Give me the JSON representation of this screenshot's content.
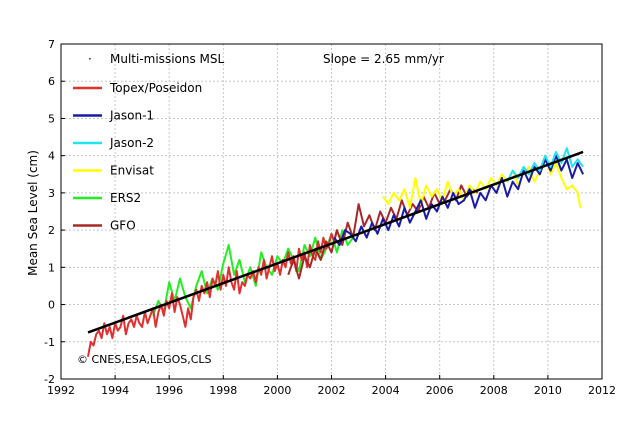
{
  "chart_data": {
    "type": "line",
    "title": "",
    "xlabel": "",
    "ylabel": "Mean Sea Level (cm)",
    "xlim": [
      1992,
      2012
    ],
    "ylim": [
      -2,
      7
    ],
    "xticks": [
      1992,
      1994,
      1996,
      1998,
      2000,
      2002,
      2004,
      2006,
      2008,
      2010,
      2012
    ],
    "yticks": [
      -2,
      -1,
      0,
      1,
      2,
      3,
      4,
      5,
      6,
      7
    ],
    "grid": true,
    "legend_position": "top-left",
    "legend_header": "Multi-missions MSL",
    "annotation": "Slope = 2.65 mm/yr",
    "copyright": "© CNES,ESA,LEGOS,CLS",
    "trend": {
      "x": [
        1993.0,
        2011.3
      ],
      "y": [
        -0.75,
        4.1
      ],
      "color": "#000000"
    },
    "series": [
      {
        "name": "Topex/Poseidon",
        "color": "#e03030",
        "x": [
          1993.0,
          1993.1,
          1993.2,
          1993.3,
          1993.4,
          1993.5,
          1993.6,
          1993.7,
          1993.8,
          1993.9,
          1994.0,
          1994.1,
          1994.2,
          1994.3,
          1994.4,
          1994.5,
          1994.6,
          1994.7,
          1994.8,
          1994.9,
          1995.0,
          1995.1,
          1995.2,
          1995.3,
          1995.4,
          1995.5,
          1995.6,
          1995.7,
          1995.8,
          1995.9,
          1996.0,
          1996.1,
          1996.2,
          1996.3,
          1996.4,
          1996.5,
          1996.6,
          1996.7,
          1996.8,
          1996.9,
          1997.0,
          1997.1,
          1997.2,
          1997.3,
          1997.4,
          1997.5,
          1997.6,
          1997.7,
          1997.8,
          1997.9,
          1998.0,
          1998.1,
          1998.2,
          1998.3,
          1998.4,
          1998.5,
          1998.6,
          1998.7,
          1998.8,
          1998.9,
          1999.0,
          1999.1,
          1999.2,
          1999.3,
          1999.4,
          1999.5,
          1999.6,
          1999.7,
          1999.8,
          1999.9,
          2000.0,
          2000.1,
          2000.2,
          2000.3,
          2000.4,
          2000.5,
          2000.6,
          2000.7,
          2000.8,
          2000.9,
          2001.0,
          2001.1,
          2001.2,
          2001.3,
          2001.4,
          2001.5,
          2001.6,
          2001.7,
          2001.8,
          2001.9,
          2002.0,
          2002.1,
          2002.2
        ],
        "y": [
          -1.4,
          -1.0,
          -1.1,
          -0.8,
          -0.7,
          -0.9,
          -0.5,
          -0.8,
          -0.6,
          -0.9,
          -0.5,
          -0.7,
          -0.6,
          -0.3,
          -0.8,
          -0.5,
          -0.4,
          -0.6,
          -0.3,
          -0.5,
          -0.6,
          -0.2,
          -0.5,
          -0.3,
          -0.1,
          -0.6,
          -0.2,
          0.0,
          -0.3,
          0.1,
          -0.1,
          0.3,
          -0.2,
          0.2,
          0.0,
          -0.3,
          -0.6,
          -0.1,
          -0.4,
          0.2,
          0.4,
          0.1,
          0.5,
          0.3,
          0.6,
          0.2,
          0.7,
          0.5,
          0.9,
          0.4,
          0.8,
          0.5,
          1.0,
          0.6,
          0.4,
          0.9,
          0.3,
          0.6,
          0.5,
          0.8,
          0.7,
          0.9,
          0.6,
          1.0,
          0.8,
          1.2,
          0.7,
          1.0,
          1.3,
          0.9,
          1.1,
          0.8,
          1.2,
          1.0,
          1.4,
          1.1,
          1.3,
          0.9,
          1.5,
          1.2,
          1.4,
          1.0,
          1.6,
          1.3,
          1.2,
          1.7,
          1.4,
          1.8,
          1.5,
          1.6,
          1.9,
          1.7,
          2.0
        ]
      },
      {
        "name": "Jason-1",
        "color": "#1a1aa8",
        "x": [
          2002.1,
          2002.3,
          2002.5,
          2002.7,
          2002.9,
          2003.1,
          2003.3,
          2003.5,
          2003.7,
          2003.9,
          2004.1,
          2004.3,
          2004.5,
          2004.7,
          2004.9,
          2005.1,
          2005.3,
          2005.5,
          2005.7,
          2005.9,
          2006.1,
          2006.3,
          2006.5,
          2006.7,
          2006.9,
          2007.1,
          2007.3,
          2007.5,
          2007.7,
          2007.9,
          2008.1,
          2008.3,
          2008.5,
          2008.7,
          2008.9,
          2009.1,
          2009.3,
          2009.5,
          2009.7,
          2009.9,
          2010.1,
          2010.3,
          2010.5,
          2010.7,
          2010.9,
          2011.1,
          2011.3
        ],
        "y": [
          1.8,
          1.6,
          2.0,
          1.9,
          1.7,
          2.1,
          1.8,
          2.2,
          1.9,
          2.3,
          2.0,
          2.4,
          2.1,
          2.6,
          2.2,
          2.5,
          2.8,
          2.3,
          2.7,
          2.5,
          2.9,
          2.6,
          3.0,
          2.7,
          2.8,
          3.1,
          2.6,
          3.0,
          2.8,
          3.2,
          3.0,
          3.4,
          2.9,
          3.3,
          3.1,
          3.6,
          3.3,
          3.7,
          3.5,
          3.9,
          3.6,
          4.0,
          3.6,
          3.9,
          3.4,
          3.8,
          3.5
        ]
      },
      {
        "name": "Jason-2",
        "color": "#22e4f0",
        "x": [
          2008.5,
          2008.7,
          2008.9,
          2009.1,
          2009.3,
          2009.5,
          2009.7,
          2009.9,
          2010.1,
          2010.3,
          2010.5,
          2010.7,
          2010.9,
          2011.1,
          2011.3
        ],
        "y": [
          3.3,
          3.6,
          3.4,
          3.7,
          3.5,
          3.8,
          3.6,
          4.0,
          3.7,
          4.1,
          3.8,
          4.2,
          3.7,
          3.9,
          3.7
        ]
      },
      {
        "name": "Envisat",
        "color": "#ffff00",
        "x": [
          2003.9,
          2004.1,
          2004.3,
          2004.5,
          2004.7,
          2004.9,
          2005.1,
          2005.3,
          2005.5,
          2005.7,
          2005.9,
          2006.1,
          2006.3,
          2006.5,
          2006.7,
          2006.9,
          2007.1,
          2007.3,
          2007.5,
          2007.7,
          2007.9,
          2008.1,
          2008.3,
          2008.5,
          2008.7,
          2008.9,
          2009.1,
          2009.3,
          2009.5,
          2009.7,
          2009.9,
          2010.1,
          2010.3,
          2010.5,
          2010.7,
          2010.9,
          2011.1,
          2011.2
        ],
        "y": [
          2.9,
          2.7,
          3.0,
          2.8,
          3.1,
          2.6,
          3.4,
          2.7,
          3.2,
          2.9,
          3.1,
          2.8,
          3.3,
          2.9,
          3.1,
          2.8,
          3.2,
          3.0,
          3.3,
          3.1,
          3.4,
          3.2,
          3.5,
          3.3,
          3.6,
          3.2,
          3.5,
          3.7,
          3.3,
          3.6,
          4.0,
          3.5,
          3.8,
          3.4,
          3.1,
          3.2,
          3.0,
          2.6
        ]
      },
      {
        "name": "ERS2",
        "color": "#22ee22",
        "x": [
          1995.4,
          1995.6,
          1995.8,
          1996.0,
          1996.2,
          1996.4,
          1996.6,
          1996.8,
          1997.0,
          1997.2,
          1997.4,
          1997.6,
          1997.8,
          1998.0,
          1998.2,
          1998.4,
          1998.6,
          1998.8,
          1999.0,
          1999.2,
          1999.4,
          1999.6,
          1999.8,
          2000.0,
          2000.2,
          2000.4,
          2000.6,
          2000.8,
          2001.0,
          2001.2,
          2001.4,
          2001.6,
          2001.8,
          2002.0,
          2002.2,
          2002.4,
          2002.6,
          2002.8
        ],
        "y": [
          -0.3,
          0.1,
          -0.2,
          0.6,
          0.1,
          0.7,
          0.2,
          -0.1,
          0.5,
          0.9,
          0.3,
          0.7,
          0.4,
          1.1,
          1.6,
          0.8,
          1.2,
          0.6,
          1.0,
          0.5,
          1.4,
          1.0,
          0.8,
          1.3,
          1.1,
          1.5,
          1.2,
          0.9,
          1.6,
          1.3,
          1.8,
          1.2,
          1.5,
          1.9,
          1.4,
          2.0,
          1.6,
          1.8
        ]
      },
      {
        "name": "GFO",
        "color": "#a82828",
        "x": [
          2000.4,
          2000.6,
          2000.8,
          2001.0,
          2001.2,
          2001.4,
          2001.6,
          2001.8,
          2002.0,
          2002.2,
          2002.4,
          2002.6,
          2002.8,
          2003.0,
          2003.2,
          2003.4,
          2003.6,
          2003.8,
          2004.0,
          2004.2,
          2004.4,
          2004.6,
          2004.8,
          2005.0,
          2005.2,
          2005.4,
          2005.6,
          2005.8,
          2006.0,
          2006.2,
          2006.4,
          2006.6,
          2006.8,
          2007.0,
          2007.2,
          2007.4
        ],
        "y": [
          0.8,
          1.2,
          0.7,
          1.3,
          1.0,
          1.5,
          1.2,
          1.7,
          1.4,
          2.0,
          1.6,
          2.2,
          1.8,
          2.7,
          2.1,
          2.4,
          2.0,
          2.5,
          2.2,
          2.6,
          2.3,
          2.8,
          2.4,
          2.7,
          2.5,
          2.9,
          2.6,
          3.0,
          2.7,
          2.8,
          3.1,
          2.8,
          3.2,
          2.9,
          3.1,
          3.0
        ]
      }
    ]
  }
}
